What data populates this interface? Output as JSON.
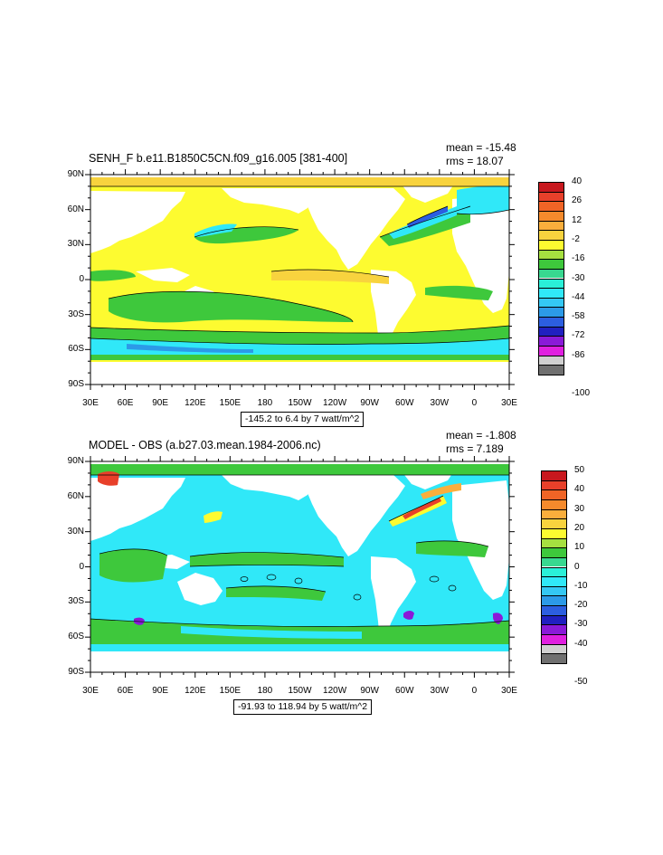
{
  "panels": [
    {
      "title": "SENH_F b.e11.B1850C5CN.f09_g16.005 [381-400]",
      "mean": "mean = -15.48",
      "rms": "rms = 18.07",
      "range": "-145.2 to 6.4 by 7 watt/m^2",
      "lat_labels": [
        "90N",
        "60N",
        "30N",
        "0",
        "30S",
        "60S",
        "90S"
      ],
      "lon_labels": [
        "30E",
        "60E",
        "90E",
        "120E",
        "150E",
        "180",
        "150W",
        "120W",
        "90W",
        "60W",
        "30W",
        "0",
        "30E"
      ],
      "colorbar": {
        "labels": [
          "40",
          "26",
          "12",
          "-2",
          "-16",
          "-30",
          "-44",
          "-58",
          "-72",
          "-86",
          "-100"
        ],
        "colors": [
          "#c8181e",
          "#e8402a",
          "#f06426",
          "#f58a2c",
          "#faae3c",
          "#f8d33e",
          "#fdfb30",
          "#a6e040",
          "#3ec83c",
          "#38d890",
          "#2af0d8",
          "#30e8f8",
          "#34c8f4",
          "#2c9ae8",
          "#2c5ee0",
          "#2020c0",
          "#8a1ad8",
          "#e020e0",
          "#d0d0d0",
          "#707070"
        ]
      }
    },
    {
      "title": "MODEL - OBS (a.b27.03.mean.1984-2006.nc)",
      "mean": "mean = -1.808",
      "rms": "rms = 7.189",
      "range": "-91.93 to 118.94 by 5 watt/m^2",
      "lat_labels": [
        "90N",
        "60N",
        "30N",
        "0",
        "30S",
        "60S",
        "90S"
      ],
      "lon_labels": [
        "30E",
        "60E",
        "90E",
        "120E",
        "150E",
        "180",
        "150W",
        "120W",
        "90W",
        "60W",
        "30W",
        "0",
        "30E"
      ],
      "colorbar": {
        "labels": [
          "50",
          "40",
          "30",
          "20",
          "10",
          "0",
          "-10",
          "-20",
          "-30",
          "-40",
          "-50"
        ],
        "colors": [
          "#c8181e",
          "#e8402a",
          "#f06426",
          "#f58a2c",
          "#faae3c",
          "#f8d33e",
          "#fdfb30",
          "#a6e040",
          "#3ec83c",
          "#38d890",
          "#2af0d8",
          "#30e8f8",
          "#34c8f4",
          "#2c9ae8",
          "#2c5ee0",
          "#2020c0",
          "#8a1ad8",
          "#e020e0",
          "#d0d0d0",
          "#707070"
        ]
      }
    }
  ],
  "field_colors": {
    "panel1": {
      "ocean": "#fdfb30",
      "band": "#f8d33e",
      "low": "#3ec83c",
      "lower": "#30e8f8",
      "deep": "#2c5ee0"
    },
    "panel2": {
      "ocean": "#30e8f8",
      "pos": "#3ec83c",
      "warm": "#fdfb30",
      "hot": "#e8402a",
      "cold": "#8a1ad8"
    }
  }
}
